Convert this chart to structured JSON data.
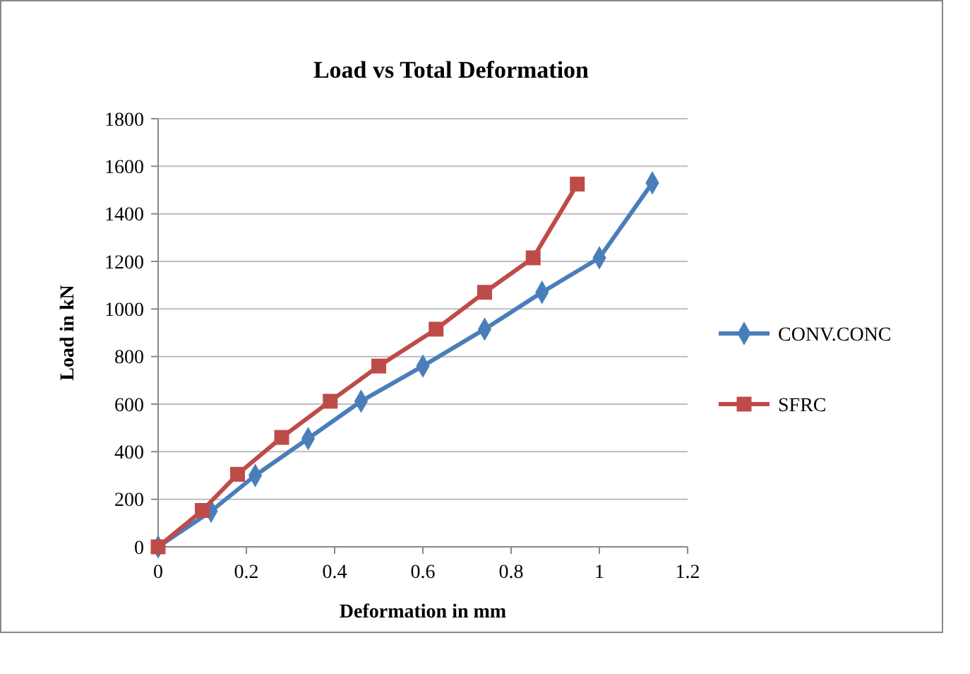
{
  "chart_data": {
    "type": "line",
    "title": "Load vs Total Deformation",
    "xlabel": "Deformation in mm",
    "ylabel": "Load in kN",
    "xlim": [
      0,
      1.2
    ],
    "xticks": [
      0,
      0.2,
      0.4,
      0.6,
      0.8,
      1,
      1.2
    ],
    "ylim": [
      0,
      1800
    ],
    "yticks": [
      0,
      200,
      400,
      600,
      800,
      1000,
      1200,
      1400,
      1600,
      1800
    ],
    "grid": "y",
    "legend": "right",
    "series": [
      {
        "name": "CONV.CONC",
        "color": "#4a7ebb",
        "marker": "diamond",
        "x": [
          0,
          0.12,
          0.22,
          0.34,
          0.46,
          0.6,
          0.74,
          0.87,
          1.0,
          1.12
        ],
        "values": [
          0,
          150,
          300,
          455,
          612,
          760,
          915,
          1070,
          1215,
          1530
        ]
      },
      {
        "name": "SFRC",
        "color": "#be4b48",
        "marker": "square",
        "x": [
          0,
          0.1,
          0.18,
          0.28,
          0.39,
          0.5,
          0.63,
          0.74,
          0.85,
          0.95
        ],
        "values": [
          0,
          153,
          305,
          460,
          612,
          760,
          915,
          1070,
          1215,
          1525
        ]
      }
    ]
  }
}
